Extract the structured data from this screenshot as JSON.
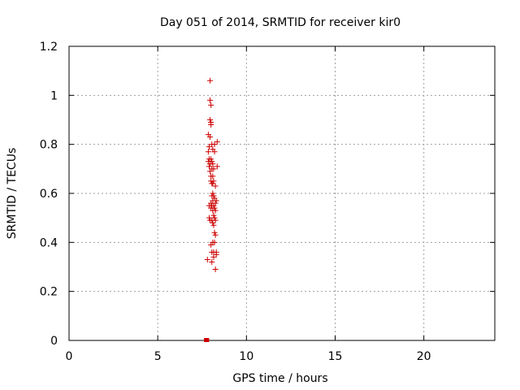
{
  "chart_data": {
    "type": "scatter",
    "title": "Day 051 of 2014, SRMTID for receiver kir0",
    "xlabel": "GPS time / hours",
    "ylabel": "SRMTID / TECUs",
    "xlim": [
      0,
      24
    ],
    "ylim": [
      0,
      1.2
    ],
    "x_ticks": [
      0,
      5,
      10,
      15,
      20
    ],
    "x_tick_labels": [
      "0",
      "5",
      "10",
      "15",
      "20"
    ],
    "y_ticks": [
      0,
      0.2,
      0.4,
      0.6,
      0.8,
      1.0,
      1.2
    ],
    "y_tick_labels": [
      "0",
      "0.2",
      "0.4",
      "0.6",
      "0.8",
      "1",
      "1.2"
    ],
    "grid": true,
    "marker_color": "#cc0000",
    "series": [
      {
        "marker": "plus",
        "points": [
          [
            7.95,
            1.06
          ],
          [
            7.95,
            0.98
          ],
          [
            8.0,
            0.96
          ],
          [
            7.95,
            0.9
          ],
          [
            8.0,
            0.89
          ],
          [
            8.0,
            0.88
          ],
          [
            7.85,
            0.84
          ],
          [
            7.95,
            0.83
          ],
          [
            8.35,
            0.81
          ],
          [
            8.05,
            0.8
          ],
          [
            8.2,
            0.8
          ],
          [
            7.9,
            0.79
          ],
          [
            8.1,
            0.78
          ],
          [
            7.85,
            0.77
          ],
          [
            8.2,
            0.77
          ],
          [
            7.9,
            0.74
          ],
          [
            8.0,
            0.74
          ],
          [
            7.85,
            0.73
          ],
          [
            8.05,
            0.73
          ],
          [
            7.95,
            0.72
          ],
          [
            8.1,
            0.72
          ],
          [
            7.9,
            0.71
          ],
          [
            8.35,
            0.71
          ],
          [
            8.05,
            0.7
          ],
          [
            8.15,
            0.7
          ],
          [
            7.95,
            0.69
          ],
          [
            8.0,
            0.67
          ],
          [
            8.1,
            0.67
          ],
          [
            8.0,
            0.65
          ],
          [
            8.15,
            0.65
          ],
          [
            8.05,
            0.64
          ],
          [
            8.1,
            0.64
          ],
          [
            8.25,
            0.63
          ],
          [
            8.1,
            0.6
          ],
          [
            8.05,
            0.59
          ],
          [
            8.15,
            0.59
          ],
          [
            8.2,
            0.58
          ],
          [
            8.1,
            0.57
          ],
          [
            8.3,
            0.57
          ],
          [
            8.0,
            0.56
          ],
          [
            8.25,
            0.56
          ],
          [
            7.9,
            0.55
          ],
          [
            8.05,
            0.55
          ],
          [
            8.15,
            0.55
          ],
          [
            8.0,
            0.54
          ],
          [
            8.2,
            0.54
          ],
          [
            8.1,
            0.53
          ],
          [
            8.25,
            0.53
          ],
          [
            8.15,
            0.51
          ],
          [
            7.9,
            0.5
          ],
          [
            8.2,
            0.5
          ],
          [
            7.95,
            0.49
          ],
          [
            8.05,
            0.49
          ],
          [
            8.25,
            0.49
          ],
          [
            8.1,
            0.48
          ],
          [
            8.15,
            0.47
          ],
          [
            8.2,
            0.44
          ],
          [
            8.25,
            0.43
          ],
          [
            8.1,
            0.4
          ],
          [
            8.2,
            0.4
          ],
          [
            8.0,
            0.39
          ],
          [
            8.05,
            0.36
          ],
          [
            8.15,
            0.36
          ],
          [
            8.3,
            0.36
          ],
          [
            8.3,
            0.35
          ],
          [
            8.15,
            0.34
          ],
          [
            7.8,
            0.33
          ],
          [
            8.05,
            0.32
          ],
          [
            8.25,
            0.29
          ]
        ]
      },
      {
        "marker": "square",
        "points": [
          [
            7.72,
            0.0
          ],
          [
            7.78,
            0.0
          ],
          [
            7.75,
            0.0
          ]
        ]
      }
    ]
  }
}
